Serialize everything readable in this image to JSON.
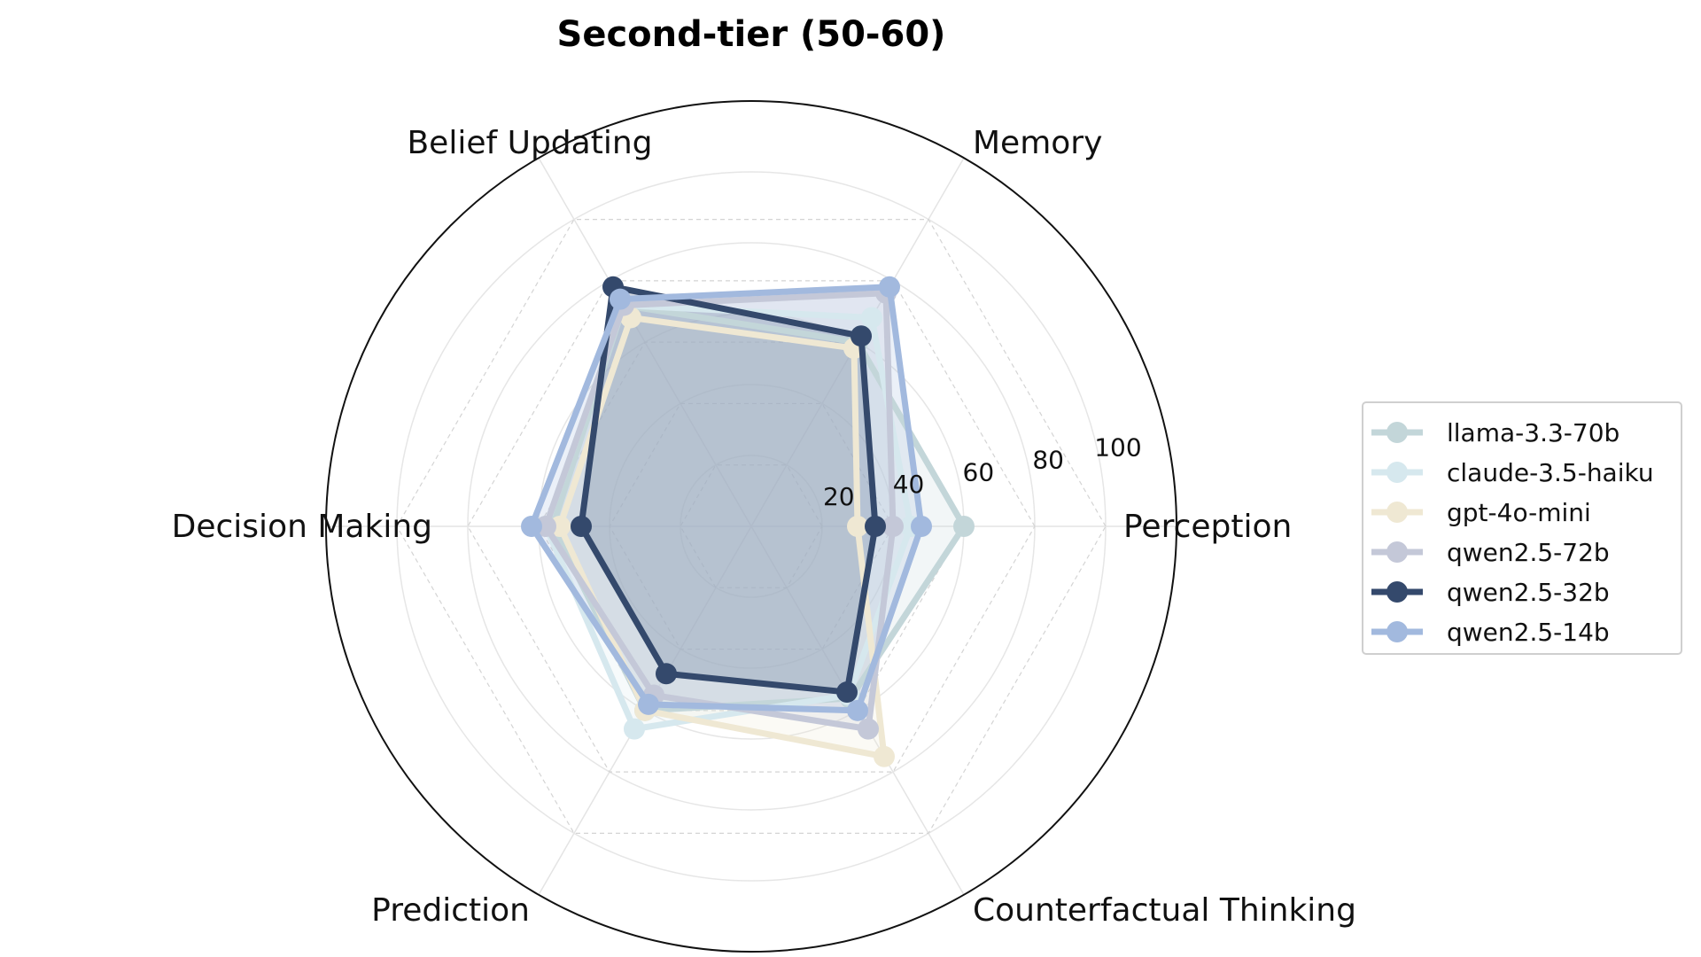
{
  "chart_data": {
    "type": "radar",
    "title": "Second-tier (50-60)",
    "axes": [
      "Perception",
      "Memory",
      "Belief Updating",
      "Decision Making",
      "Prediction",
      "Counterfactual Thinking"
    ],
    "rlim": [
      0,
      120
    ],
    "rticks": [
      20,
      40,
      60,
      80,
      100
    ],
    "grid": true,
    "legend": "right",
    "series": [
      {
        "name": "llama-3.3-70b",
        "color": "#c3d6d9",
        "values": [
          60,
          60,
          72,
          56,
          60,
          56
        ]
      },
      {
        "name": "claude-3.5-haiku",
        "color": "#d6e8ee",
        "values": [
          45,
          68,
          72,
          58,
          66,
          55
        ]
      },
      {
        "name": "gpt-4o-mini",
        "color": "#efe8d3",
        "values": [
          30,
          58,
          68,
          54,
          60,
          75
        ]
      },
      {
        "name": "qwen2.5-72b",
        "color": "#c4c8d8",
        "values": [
          40,
          76,
          72,
          58,
          55,
          66
        ]
      },
      {
        "name": "qwen2.5-32b",
        "color": "#34496c",
        "values": [
          35,
          62,
          78,
          48,
          48,
          54
        ]
      },
      {
        "name": "qwen2.5-14b",
        "color": "#a2b9de",
        "values": [
          48,
          78,
          74,
          62,
          58,
          60
        ]
      }
    ]
  }
}
